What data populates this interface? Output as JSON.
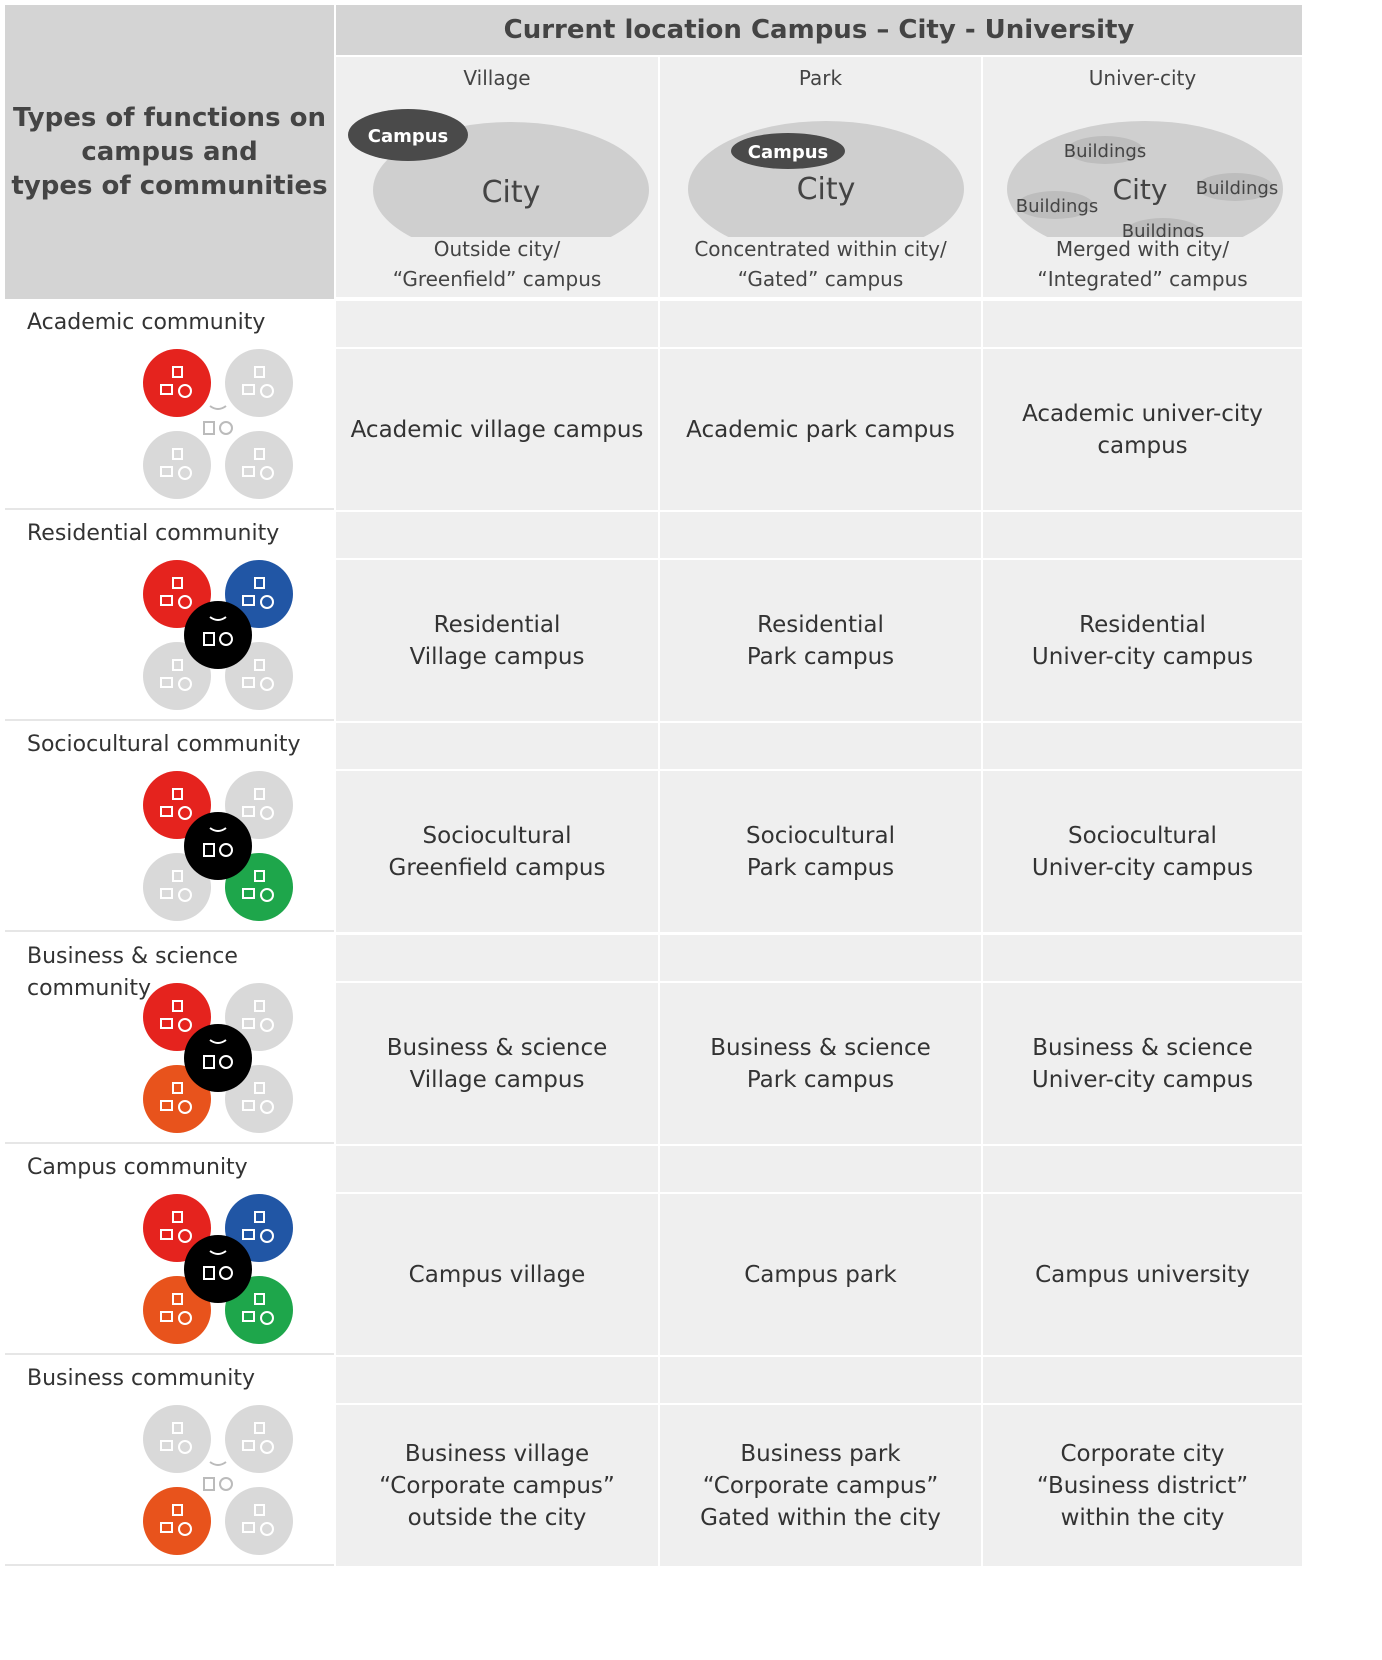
{
  "corner_label": "Types of functions on\ncampus and\ntypes of communities",
  "header_title": "Current location Campus – City - University",
  "columns": [
    {
      "name": "Village",
      "caption": "Outside city/\n“Greenfield” campus",
      "labels": {
        "city": "City",
        "campus": "Campus"
      }
    },
    {
      "name": "Park",
      "caption": "Concentrated within city/\n“Gated” campus",
      "labels": {
        "city": "City",
        "campus": "Campus"
      }
    },
    {
      "name": "Univer-city",
      "caption": "Merged with city/\n“Integrated” campus",
      "labels": {
        "city": "City",
        "buildings": "Buildings"
      }
    }
  ],
  "rows": [
    {
      "label": "Academic community",
      "active": {
        "red": true,
        "blue": false,
        "green": false,
        "orange": false,
        "black": false
      },
      "cells": [
        "Academic village campus",
        "Academic park campus",
        "Academic univer-city\ncampus"
      ]
    },
    {
      "label": "Residential community",
      "active": {
        "red": true,
        "blue": true,
        "green": false,
        "orange": false,
        "black": true
      },
      "cells": [
        "Residential\nVillage campus",
        "Residential\nPark campus",
        "Residential\nUniver-city campus"
      ]
    },
    {
      "label": "Sociocultural community",
      "active": {
        "red": true,
        "blue": false,
        "green": true,
        "orange": false,
        "black": true
      },
      "cells": [
        "Sociocultural\nGreenfield campus",
        "Sociocultural\nPark campus",
        "Sociocultural\nUniver-city campus"
      ]
    },
    {
      "label": "Business & science\ncommunity",
      "active": {
        "red": true,
        "blue": false,
        "green": false,
        "orange": true,
        "black": true
      },
      "cells": [
        "Business & science\nVillage campus",
        "Business & science\nPark campus",
        "Business & science\nUniver-city campus"
      ]
    },
    {
      "label": "Campus community",
      "active": {
        "red": true,
        "blue": true,
        "green": true,
        "orange": true,
        "black": true
      },
      "cells": [
        "Campus village",
        "Campus park",
        "Campus university"
      ]
    },
    {
      "label": "Business community",
      "active": {
        "red": false,
        "blue": false,
        "green": false,
        "orange": true,
        "black": false
      },
      "cells": [
        "Business village\n“Corporate campus”\noutside the city",
        "Business park\n“Corporate campus”\nGated within the city",
        "Corporate city\n“Business district”\nwithin the city"
      ]
    }
  ],
  "colors": {
    "red": "#e5231e",
    "blue": "#2156a5",
    "green": "#1ea64b",
    "orange": "#e8531c",
    "black": "#000000",
    "inactive": "#d9d9d9",
    "header_dark": "#d4d4d4",
    "cell_light": "#efefef"
  },
  "function_icons": {
    "red": "education-icon",
    "blue": "housing-icon",
    "green": "leisure-icon",
    "orange": "work-icon",
    "black": "transport-icon"
  }
}
